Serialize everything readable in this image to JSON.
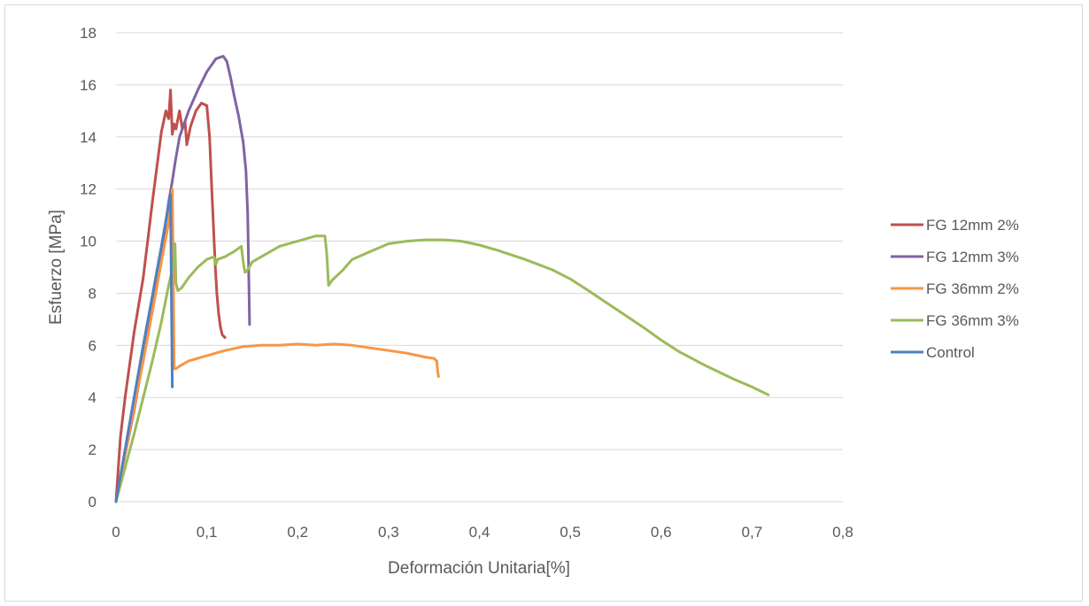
{
  "chart_data": {
    "type": "line",
    "title": "",
    "xlabel": "Deformación  Unitaria[%]",
    "ylabel": "Esfuerzo [MPa]",
    "xlim": [
      0,
      0.8
    ],
    "ylim": [
      0,
      18
    ],
    "x_ticks": [
      "0",
      "0,1",
      "0,2",
      "0,3",
      "0,4",
      "0,5",
      "0,6",
      "0,7",
      "0,8"
    ],
    "y_ticks": [
      "0",
      "2",
      "4",
      "6",
      "8",
      "10",
      "12",
      "14",
      "16",
      "18"
    ],
    "grid": "horizontal",
    "legend_position": "right",
    "series": [
      {
        "name": "FG 12mm 2%",
        "color": "#c0504d",
        "x": [
          0,
          0.005,
          0.01,
          0.02,
          0.03,
          0.04,
          0.05,
          0.055,
          0.058,
          0.06,
          0.062,
          0.064,
          0.066,
          0.07,
          0.073,
          0.076,
          0.078,
          0.082,
          0.088,
          0.094,
          0.1,
          0.103,
          0.105,
          0.107,
          0.109,
          0.111,
          0.113,
          0.115,
          0.117,
          0.12
        ],
        "y": [
          0,
          2.5,
          4,
          6.5,
          8.6,
          11.5,
          14.2,
          15,
          14.7,
          15.8,
          14.1,
          14.5,
          14.3,
          15,
          14.3,
          14.6,
          13.7,
          14.4,
          15,
          15.3,
          15.2,
          14,
          12.3,
          10.8,
          9.2,
          8,
          7.2,
          6.7,
          6.4,
          6.3
        ]
      },
      {
        "name": "FG 12mm 3%",
        "color": "#8064a2",
        "x": [
          0,
          0.01,
          0.02,
          0.03,
          0.04,
          0.05,
          0.058,
          0.062,
          0.065,
          0.07,
          0.08,
          0.09,
          0.1,
          0.11,
          0.118,
          0.122,
          0.126,
          0.13,
          0.135,
          0.14,
          0.143,
          0.145,
          0.146,
          0.147
        ],
        "y": [
          0,
          1.8,
          3.5,
          5.5,
          7.5,
          9.5,
          11.5,
          12.3,
          13,
          14,
          15,
          15.8,
          16.5,
          17,
          17.1,
          16.9,
          16.3,
          15.6,
          14.8,
          13.8,
          12.7,
          11,
          9,
          6.8
        ]
      },
      {
        "name": "FG 36mm 2%",
        "color": "#f79646",
        "x": [
          0,
          0.01,
          0.02,
          0.03,
          0.04,
          0.05,
          0.058,
          0.062,
          0.063,
          0.064,
          0.066,
          0.07,
          0.08,
          0.1,
          0.12,
          0.14,
          0.16,
          0.18,
          0.2,
          0.22,
          0.24,
          0.26,
          0.28,
          0.3,
          0.32,
          0.34,
          0.35,
          0.353,
          0.354,
          0.355
        ],
        "y": [
          0,
          1.8,
          3.6,
          5.4,
          7.3,
          9.2,
          10.7,
          12,
          9,
          5.1,
          5.1,
          5.2,
          5.4,
          5.6,
          5.8,
          5.95,
          6,
          6,
          6.05,
          6,
          6.05,
          6,
          5.9,
          5.8,
          5.7,
          5.55,
          5.5,
          5.4,
          5,
          4.8
        ]
      },
      {
        "name": "FG 36mm 3%",
        "color": "#9bbb59",
        "x": [
          0,
          0.01,
          0.02,
          0.03,
          0.04,
          0.05,
          0.058,
          0.062,
          0.064,
          0.065,
          0.066,
          0.068,
          0.072,
          0.08,
          0.09,
          0.1,
          0.108,
          0.11,
          0.112,
          0.12,
          0.13,
          0.138,
          0.14,
          0.142,
          0.145,
          0.15,
          0.16,
          0.18,
          0.2,
          0.22,
          0.23,
          0.232,
          0.234,
          0.238,
          0.25,
          0.26,
          0.28,
          0.3,
          0.32,
          0.34,
          0.36,
          0.38,
          0.4,
          0.42,
          0.45,
          0.48,
          0.5,
          0.52,
          0.55,
          0.58,
          0.6,
          0.62,
          0.65,
          0.68,
          0.7,
          0.718
        ],
        "y": [
          0,
          1.3,
          2.6,
          4,
          5.4,
          6.9,
          8.3,
          8.9,
          9.2,
          9.9,
          8.4,
          8.1,
          8.2,
          8.6,
          9,
          9.3,
          9.4,
          9.1,
          9.3,
          9.4,
          9.6,
          9.8,
          9.2,
          8.8,
          8.9,
          9.2,
          9.4,
          9.8,
          10,
          10.2,
          10.2,
          9.5,
          8.3,
          8.5,
          8.9,
          9.3,
          9.6,
          9.9,
          10,
          10.05,
          10.05,
          10,
          9.85,
          9.65,
          9.3,
          8.9,
          8.55,
          8.1,
          7.4,
          6.7,
          6.2,
          5.75,
          5.2,
          4.7,
          4.4,
          4.1
        ]
      },
      {
        "name": "Control",
        "color": "#4f81bd",
        "x": [
          0,
          0.01,
          0.02,
          0.03,
          0.04,
          0.05,
          0.058,
          0.06,
          0.061,
          0.062
        ],
        "y": [
          0,
          2,
          4,
          6,
          7.9,
          9.8,
          11.4,
          11.8,
          8,
          4.4
        ]
      }
    ]
  }
}
